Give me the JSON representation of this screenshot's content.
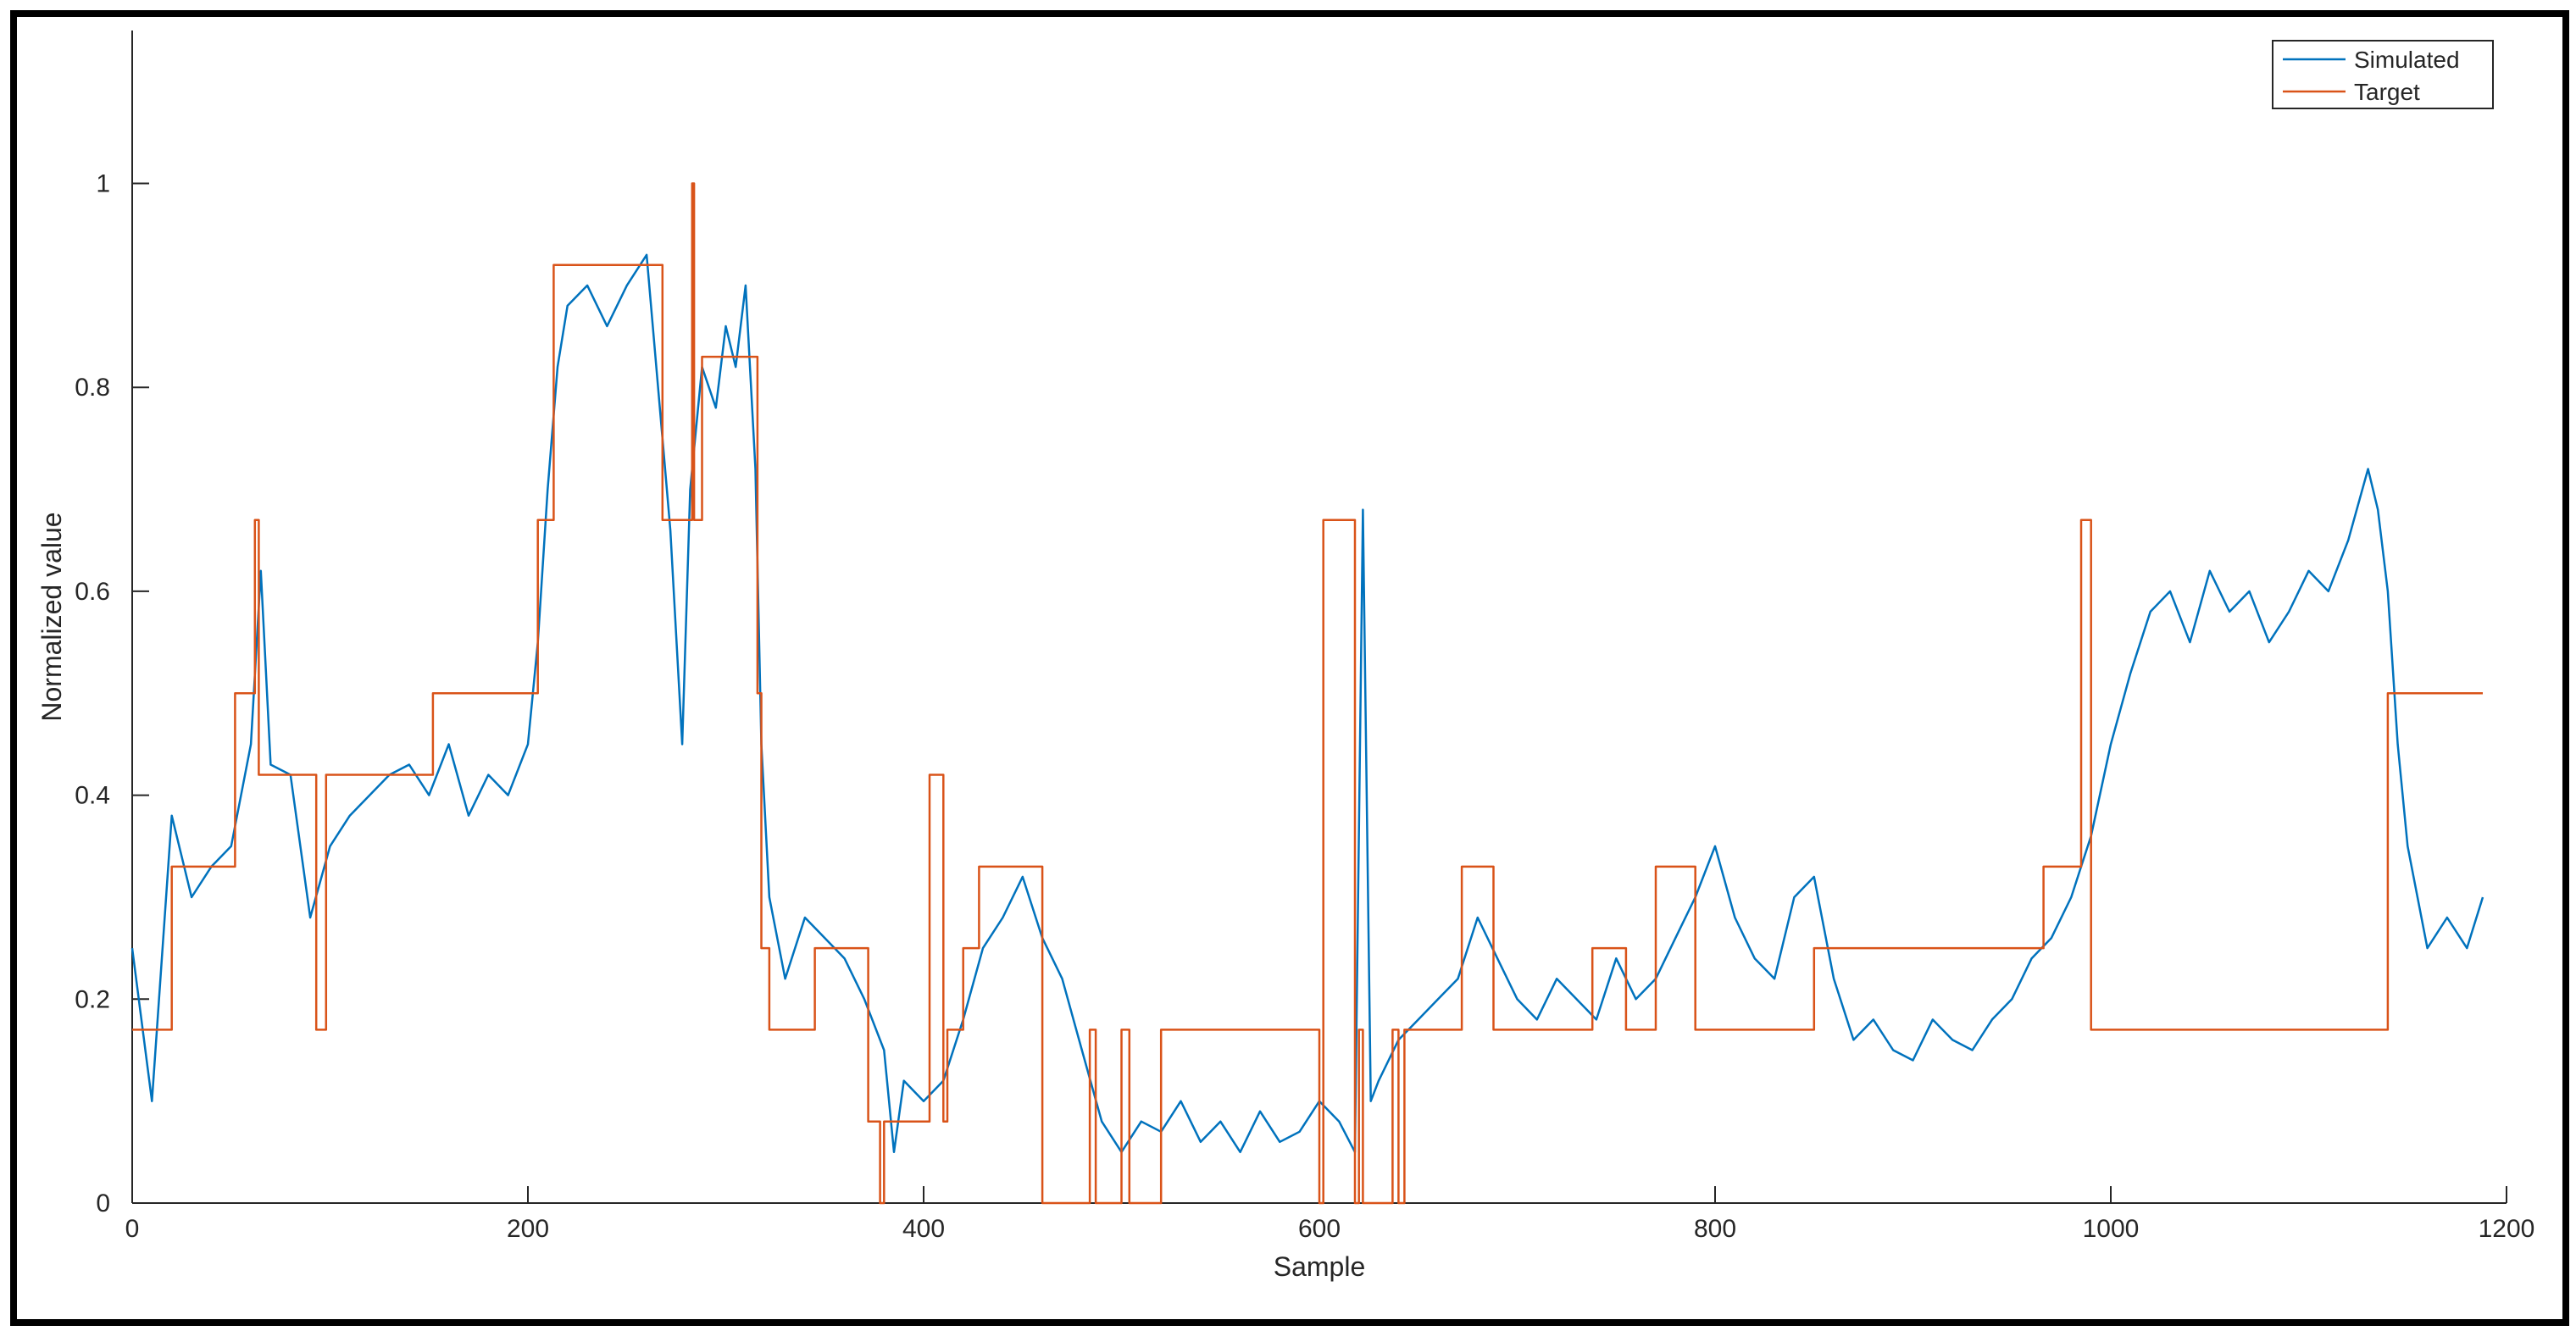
{
  "chart_data": {
    "type": "line",
    "title": "",
    "xlabel": "Sample",
    "ylabel": "Normalized value",
    "xlim": [
      0,
      1200
    ],
    "ylim": [
      0,
      1.15
    ],
    "xticks": [
      0,
      200,
      400,
      600,
      800,
      1000,
      1200
    ],
    "yticks": [
      0,
      0.2,
      0.4,
      0.6,
      0.8,
      1
    ],
    "xtick_labels": [
      "0",
      "200",
      "400",
      "600",
      "800",
      "1000",
      "1200"
    ],
    "ytick_labels": [
      "0",
      "0.2",
      "0.4",
      "0.6",
      "0.8",
      "1"
    ],
    "grid": false,
    "legend_position": "top-right",
    "series": [
      {
        "name": "Simulated",
        "color": "#0072BD",
        "x": [
          0,
          10,
          20,
          30,
          40,
          50,
          60,
          65,
          70,
          80,
          90,
          100,
          110,
          120,
          130,
          140,
          150,
          160,
          170,
          180,
          190,
          200,
          205,
          210,
          215,
          220,
          230,
          240,
          250,
          260,
          268,
          272,
          278,
          282,
          288,
          295,
          300,
          305,
          310,
          315,
          318,
          322,
          330,
          340,
          350,
          360,
          370,
          380,
          385,
          390,
          400,
          410,
          420,
          430,
          440,
          450,
          460,
          470,
          480,
          490,
          500,
          510,
          520,
          530,
          540,
          550,
          560,
          570,
          580,
          590,
          600,
          610,
          618,
          622,
          626,
          630,
          640,
          650,
          660,
          670,
          680,
          690,
          700,
          710,
          720,
          730,
          740,
          750,
          760,
          770,
          780,
          790,
          800,
          810,
          820,
          830,
          840,
          850,
          860,
          870,
          880,
          890,
          900,
          910,
          920,
          930,
          940,
          950,
          960,
          970,
          980,
          990,
          1000,
          1010,
          1020,
          1030,
          1040,
          1050,
          1060,
          1070,
          1080,
          1090,
          1100,
          1110,
          1120,
          1130,
          1135,
          1140,
          1145,
          1150,
          1160,
          1170,
          1180,
          1188
        ],
        "y": [
          0.25,
          0.1,
          0.38,
          0.3,
          0.33,
          0.35,
          0.45,
          0.62,
          0.43,
          0.42,
          0.28,
          0.35,
          0.38,
          0.4,
          0.42,
          0.43,
          0.4,
          0.45,
          0.38,
          0.42,
          0.4,
          0.45,
          0.55,
          0.7,
          0.82,
          0.88,
          0.9,
          0.86,
          0.9,
          0.93,
          0.75,
          0.66,
          0.45,
          0.7,
          0.82,
          0.78,
          0.86,
          0.82,
          0.9,
          0.72,
          0.45,
          0.3,
          0.22,
          0.28,
          0.26,
          0.24,
          0.2,
          0.15,
          0.05,
          0.12,
          0.1,
          0.12,
          0.18,
          0.25,
          0.28,
          0.32,
          0.26,
          0.22,
          0.15,
          0.08,
          0.05,
          0.08,
          0.07,
          0.1,
          0.06,
          0.08,
          0.05,
          0.09,
          0.06,
          0.07,
          0.1,
          0.08,
          0.05,
          0.68,
          0.1,
          0.12,
          0.16,
          0.18,
          0.2,
          0.22,
          0.28,
          0.24,
          0.2,
          0.18,
          0.22,
          0.2,
          0.18,
          0.24,
          0.2,
          0.22,
          0.26,
          0.3,
          0.35,
          0.28,
          0.24,
          0.22,
          0.3,
          0.32,
          0.22,
          0.16,
          0.18,
          0.15,
          0.14,
          0.18,
          0.16,
          0.15,
          0.18,
          0.2,
          0.24,
          0.26,
          0.3,
          0.36,
          0.45,
          0.52,
          0.58,
          0.6,
          0.55,
          0.62,
          0.58,
          0.6,
          0.55,
          0.58,
          0.62,
          0.6,
          0.65,
          0.72,
          0.68,
          0.6,
          0.45,
          0.35,
          0.25,
          0.28,
          0.25,
          0.3
        ]
      },
      {
        "name": "Target",
        "color": "#D95319",
        "x": [
          0,
          20,
          20,
          52,
          52,
          62,
          62,
          64,
          64,
          93,
          93,
          98,
          98,
          152,
          152,
          205,
          205,
          213,
          213,
          268,
          268,
          283,
          283,
          284,
          284,
          288,
          288,
          316,
          316,
          318,
          318,
          322,
          322,
          345,
          345,
          372,
          372,
          378,
          378,
          380,
          380,
          403,
          403,
          410,
          410,
          412,
          412,
          420,
          420,
          428,
          428,
          460,
          460,
          484,
          484,
          487,
          487,
          500,
          500,
          504,
          504,
          520,
          520,
          600,
          600,
          602,
          602,
          618,
          618,
          620,
          620,
          622,
          622,
          637,
          637,
          640,
          640,
          643,
          643,
          672,
          672,
          688,
          688,
          738,
          738,
          755,
          755,
          770,
          770,
          790,
          790,
          850,
          850,
          966,
          966,
          985,
          985,
          990,
          990,
          1140,
          1140,
          1165,
          1165,
          1170,
          1170,
          1188
        ],
        "y": [
          0.17,
          0.17,
          0.33,
          0.33,
          0.5,
          0.5,
          0.67,
          0.67,
          0.42,
          0.42,
          0.17,
          0.17,
          0.42,
          0.42,
          0.5,
          0.5,
          0.67,
          0.67,
          0.92,
          0.92,
          0.67,
          0.67,
          1.0,
          1.0,
          0.67,
          0.67,
          0.83,
          0.83,
          0.5,
          0.5,
          0.25,
          0.25,
          0.17,
          0.17,
          0.25,
          0.25,
          0.08,
          0.08,
          0.0,
          0.0,
          0.08,
          0.08,
          0.42,
          0.42,
          0.08,
          0.08,
          0.17,
          0.17,
          0.25,
          0.25,
          0.33,
          0.33,
          0.0,
          0.0,
          0.17,
          0.17,
          0.0,
          0.0,
          0.17,
          0.17,
          0.0,
          0.0,
          0.17,
          0.17,
          0.0,
          0.0,
          0.67,
          0.67,
          0.0,
          0.0,
          0.17,
          0.17,
          0.0,
          0.0,
          0.17,
          0.17,
          0.0,
          0.0,
          0.17,
          0.17,
          0.33,
          0.33,
          0.17,
          0.17,
          0.25,
          0.25,
          0.17,
          0.17,
          0.33,
          0.33,
          0.17,
          0.17,
          0.25,
          0.25,
          0.33,
          0.33,
          0.67,
          0.67,
          0.17,
          0.17,
          0.5,
          0.5,
          0.5,
          0.5,
          0.5,
          0.5
        ]
      }
    ]
  }
}
